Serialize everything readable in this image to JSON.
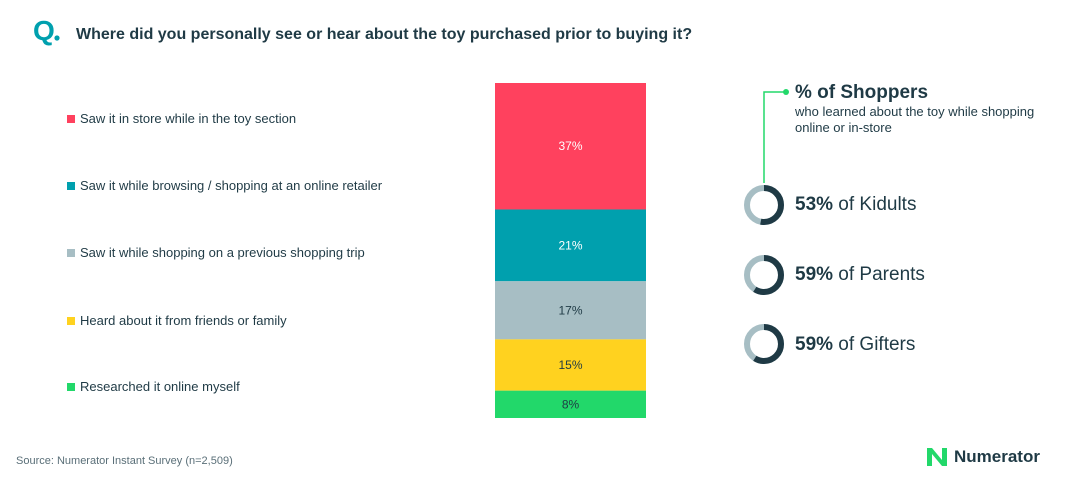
{
  "question": {
    "mark": "Q",
    "text": "Where did you personally see or hear about the toy purchased prior to buying it?"
  },
  "chart_data": {
    "type": "bar",
    "stacked": true,
    "categories": [
      "Saw it in store while in the toy section",
      "Saw it while browsing / shopping at an online retailer",
      "Saw it while shopping on a previous shopping trip",
      "Heard about it from friends or family",
      "Researched it online myself"
    ],
    "values": [
      37,
      21,
      17,
      15,
      8
    ],
    "value_labels": [
      "37%",
      "21%",
      "17%",
      "15%",
      "8%"
    ],
    "colors": [
      "#ff415e",
      "#00a0ae",
      "#a7bec4",
      "#ffd21f",
      "#22d86a"
    ],
    "legend_placement": "left"
  },
  "callout": {
    "title": "% of Shoppers",
    "subtitle": "who learned about the toy while shopping online or in-store",
    "line_color": "#22d86a"
  },
  "stats": [
    {
      "value": "53%",
      "label": " of Kidults",
      "fraction": 0.53
    },
    {
      "value": "59%",
      "label": " of Parents",
      "fraction": 0.59
    },
    {
      "value": "59%",
      "label": " of Gifters",
      "fraction": 0.59
    }
  ],
  "ring_colors": {
    "filled": "#1f3a45",
    "track": "#a7bec4"
  },
  "source": "Source: Numerator Instant Survey (n=2,509)",
  "brand": {
    "name": "Numerator",
    "icon": "numerator-logo-icon",
    "color": "#22d86a"
  }
}
